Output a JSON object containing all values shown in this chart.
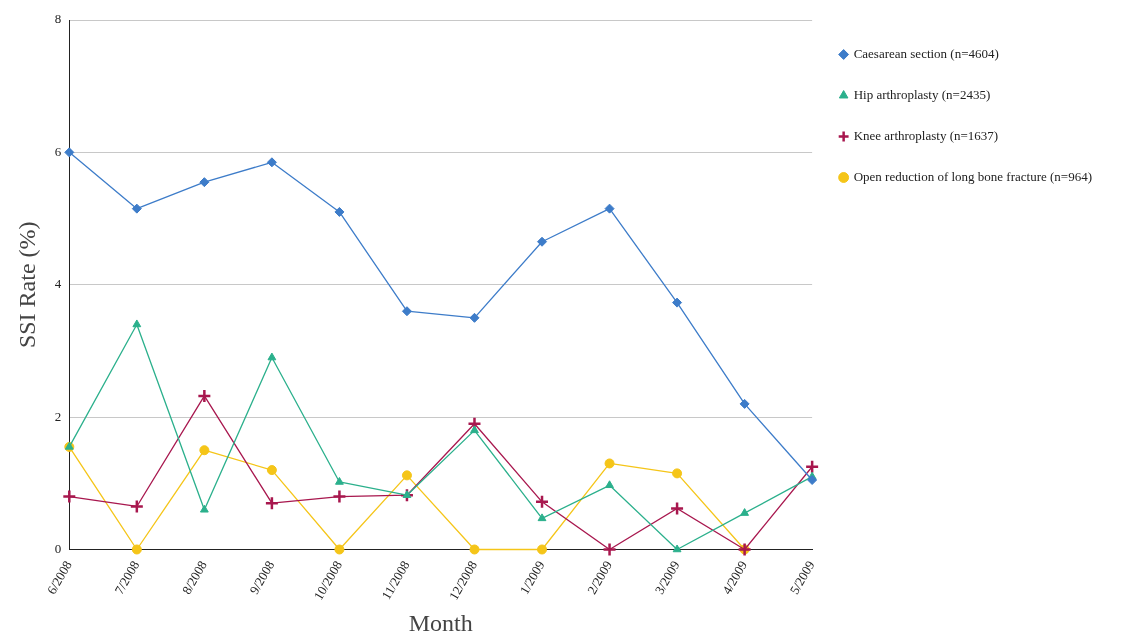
{
  "chart_data": {
    "type": "line",
    "xlabel": "Month",
    "ylabel": "SSI Rate (%)",
    "categories": [
      "6/2008",
      "7/2008",
      "8/2008",
      "9/2008",
      "10/2008",
      "11/2008",
      "12/2008",
      "1/2009",
      "2/2009",
      "3/2009",
      "4/2009",
      "5/2009"
    ],
    "series": [
      {
        "name": "Caesarean section (n=4604)",
        "color": "#3d7cc9",
        "marker": "diamond",
        "values": [
          6.0,
          5.15,
          5.55,
          5.85,
          5.1,
          3.6,
          3.5,
          4.65,
          5.15,
          3.73,
          2.2,
          1.05
        ]
      },
      {
        "name": "Hip arthroplasty (n=2435)",
        "color": "#2bb08c",
        "marker": "triangle",
        "values": [
          1.55,
          3.4,
          0.6,
          2.9,
          1.02,
          0.82,
          1.8,
          0.47,
          0.97,
          0,
          0.55,
          1.1
        ]
      },
      {
        "name": "Knee arthroplasty (n=1637)",
        "color": "#a8174e",
        "marker": "cross",
        "values": [
          0.8,
          0.65,
          2.32,
          0.7,
          0.8,
          0.82,
          1.9,
          0.72,
          0,
          0.62,
          0,
          1.25
        ]
      },
      {
        "name": "Open reduction of long bone fracture (n=964)",
        "color": "#f5c518",
        "marker": "circle",
        "values": [
          1.55,
          0,
          1.5,
          1.2,
          0,
          1.12,
          0,
          0,
          1.3,
          1.15,
          0,
          null
        ]
      }
    ],
    "ylim": [
      0,
      8
    ],
    "yticks": [
      0,
      2,
      4,
      6,
      8
    ],
    "grid": "y",
    "legend": "top right",
    "line_style": "solid"
  }
}
